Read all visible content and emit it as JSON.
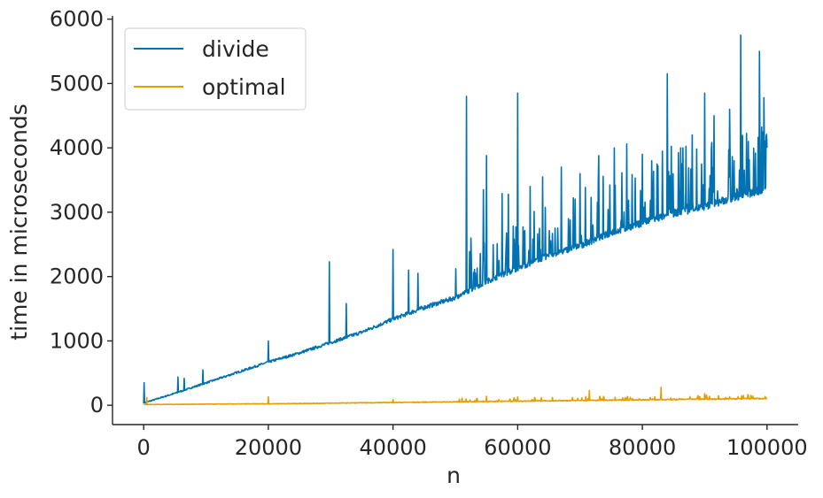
{
  "chart_data": {
    "type": "line",
    "xlabel": "n",
    "ylabel": "time in microseconds",
    "xlim": [
      -5000,
      105000
    ],
    "ylim": [
      -300,
      6050
    ],
    "xticks": [
      0,
      20000,
      40000,
      60000,
      80000,
      100000
    ],
    "yticks": [
      0,
      1000,
      2000,
      3000,
      4000,
      5000,
      6000
    ],
    "legend_position": "top-left",
    "grid": false,
    "series": [
      {
        "name": "divide",
        "color": "#0072b2",
        "baseline_x": [
          0,
          5000,
          10000,
          15000,
          20000,
          25000,
          30000,
          35000,
          40000,
          45000,
          50000,
          55000,
          60000,
          65000,
          70000,
          75000,
          80000,
          85000,
          90000,
          95000,
          100000
        ],
        "baseline_y": [
          30,
          180,
          340,
          500,
          660,
          800,
          960,
          1120,
          1320,
          1500,
          1650,
          1900,
          2100,
          2300,
          2450,
          2650,
          2800,
          2950,
          3050,
          3200,
          3320
        ],
        "spikes": [
          {
            "x": 100,
            "y": 350
          },
          {
            "x": 5500,
            "y": 440
          },
          {
            "x": 6500,
            "y": 420
          },
          {
            "x": 9500,
            "y": 550
          },
          {
            "x": 20000,
            "y": 1000
          },
          {
            "x": 29800,
            "y": 2230
          },
          {
            "x": 32500,
            "y": 1580
          },
          {
            "x": 40000,
            "y": 2420
          },
          {
            "x": 42500,
            "y": 2100
          },
          {
            "x": 44000,
            "y": 2050
          },
          {
            "x": 51800,
            "y": 4800
          },
          {
            "x": 52500,
            "y": 2600
          },
          {
            "x": 54500,
            "y": 3350
          },
          {
            "x": 55000,
            "y": 3880
          },
          {
            "x": 57500,
            "y": 3290
          },
          {
            "x": 58500,
            "y": 3280
          },
          {
            "x": 60000,
            "y": 4850
          },
          {
            "x": 62000,
            "y": 3400
          },
          {
            "x": 64000,
            "y": 3550
          },
          {
            "x": 67000,
            "y": 3700
          },
          {
            "x": 70000,
            "y": 3600
          },
          {
            "x": 73000,
            "y": 3880
          },
          {
            "x": 75500,
            "y": 4000
          },
          {
            "x": 77500,
            "y": 4060
          },
          {
            "x": 80000,
            "y": 3900
          },
          {
            "x": 81500,
            "y": 3800
          },
          {
            "x": 84000,
            "y": 5150
          },
          {
            "x": 86500,
            "y": 4000
          },
          {
            "x": 88000,
            "y": 4200
          },
          {
            "x": 90000,
            "y": 4850
          },
          {
            "x": 91500,
            "y": 4500
          },
          {
            "x": 94000,
            "y": 4600
          },
          {
            "x": 95800,
            "y": 5750
          },
          {
            "x": 97000,
            "y": 4100
          },
          {
            "x": 98800,
            "y": 5500
          },
          {
            "x": 99500,
            "y": 4780
          },
          {
            "x": 100000,
            "y": 4000
          }
        ]
      },
      {
        "name": "optimal",
        "color": "#e69f00",
        "baseline_x": [
          0,
          10000,
          20000,
          30000,
          40000,
          50000,
          60000,
          70000,
          80000,
          90000,
          100000
        ],
        "baseline_y": [
          10,
          15,
          20,
          30,
          40,
          50,
          60,
          70,
          80,
          90,
          100
        ],
        "spikes": [
          {
            "x": 500,
            "y": 120
          },
          {
            "x": 20000,
            "y": 130
          },
          {
            "x": 40000,
            "y": 90
          },
          {
            "x": 55000,
            "y": 140
          },
          {
            "x": 60000,
            "y": 130
          },
          {
            "x": 71500,
            "y": 230
          },
          {
            "x": 83000,
            "y": 280
          },
          {
            "x": 90000,
            "y": 180
          },
          {
            "x": 97000,
            "y": 160
          }
        ]
      }
    ]
  }
}
